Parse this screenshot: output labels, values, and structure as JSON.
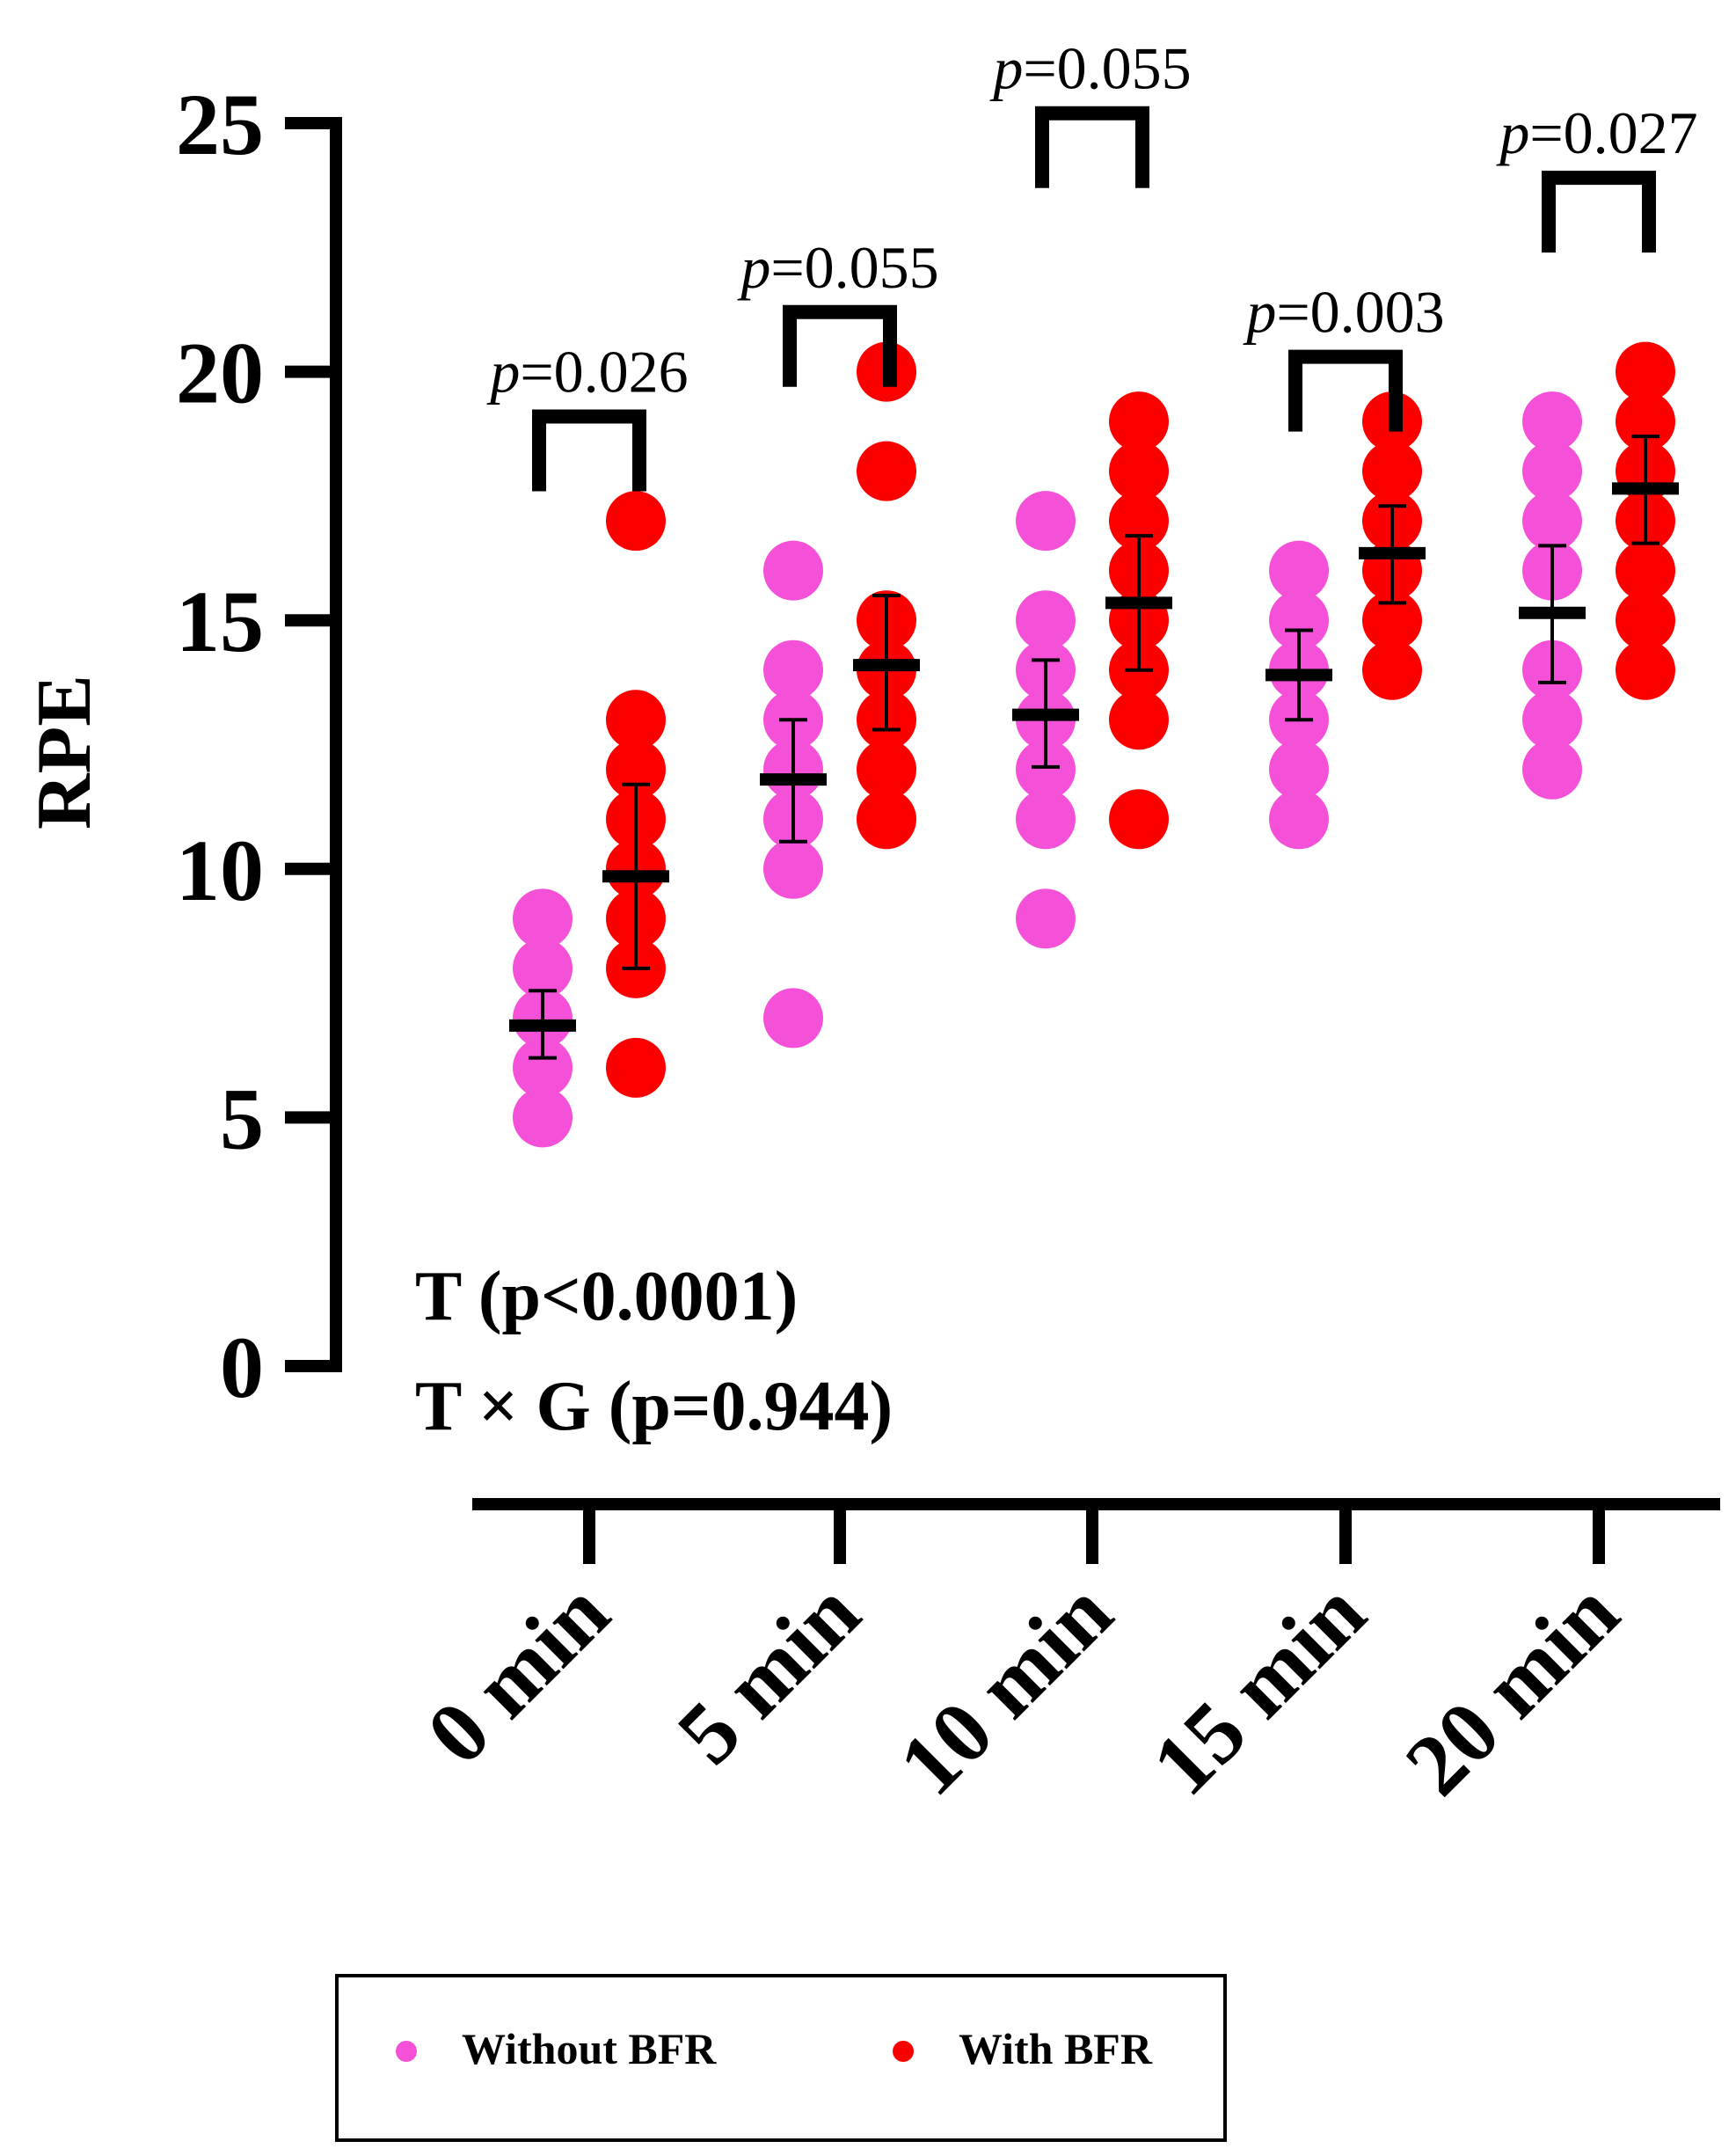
{
  "chart_data": {
    "type": "scatter",
    "ylabel": "RPE",
    "ylim": [
      0,
      25
    ],
    "yticks": [
      0,
      5,
      10,
      15,
      20,
      25
    ],
    "categories": [
      "0 min",
      "5 min",
      "10 min",
      "15 min",
      "20 min"
    ],
    "series": [
      {
        "name": "Without BFR",
        "color": "#f451d8",
        "points": [
          [
            9,
            8,
            7,
            6,
            5
          ],
          [
            16,
            14,
            13,
            12,
            11,
            10,
            7
          ],
          [
            17,
            15,
            14,
            13,
            12,
            11,
            9
          ],
          [
            16,
            15,
            14,
            13,
            12,
            11
          ],
          [
            19,
            18,
            17,
            16,
            14,
            13,
            12
          ]
        ],
        "mean": [
          6.85,
          11.8,
          13.1,
          13.9,
          15.15
        ],
        "err_low": [
          6.2,
          10.55,
          12.05,
          13.0,
          13.75
        ],
        "err_high": [
          7.55,
          13.0,
          14.2,
          14.8,
          16.5
        ]
      },
      {
        "name": "With BFR",
        "color": "#fc0000",
        "points": [
          [
            17,
            13,
            12,
            11,
            10,
            9,
            8,
            6
          ],
          [
            20,
            18,
            15,
            14,
            13,
            12,
            11
          ],
          [
            19,
            18,
            17,
            16,
            15,
            14,
            13,
            11
          ],
          [
            19,
            18,
            17,
            16,
            15,
            14
          ],
          [
            20,
            19,
            18,
            17,
            16,
            15,
            14
          ]
        ],
        "mean": [
          9.85,
          14.1,
          15.35,
          16.35,
          17.65
        ],
        "err_low": [
          8.0,
          12.8,
          14.0,
          15.35,
          16.55
        ],
        "err_high": [
          11.7,
          15.5,
          16.7,
          17.3,
          18.7
        ]
      }
    ],
    "comparisons": [
      {
        "category": "0 min",
        "p_label": "p",
        "p_value": "=0.026",
        "bracket_y": 19.1
      },
      {
        "category": "5 min",
        "p_label": "p",
        "p_value": "=0.055",
        "bracket_y": 21.2
      },
      {
        "category": "10 min",
        "p_label": "p",
        "p_value": "=0.055",
        "bracket_y": 25.2
      },
      {
        "category": "15 min",
        "p_label": "p",
        "p_value": "=0.003",
        "bracket_y": 20.3
      },
      {
        "category": "20 min",
        "p_label": "p",
        "p_value": "=0.027",
        "bracket_y": 23.9
      }
    ],
    "annotations": [
      "T (p<0.0001)",
      "T × G (p=0.944)"
    ],
    "legend": {
      "placement": "bottom",
      "entries": [
        {
          "label": "Without BFR",
          "color": "#f451d8"
        },
        {
          "label": "With BFR",
          "color": "#fc0000"
        }
      ]
    }
  }
}
